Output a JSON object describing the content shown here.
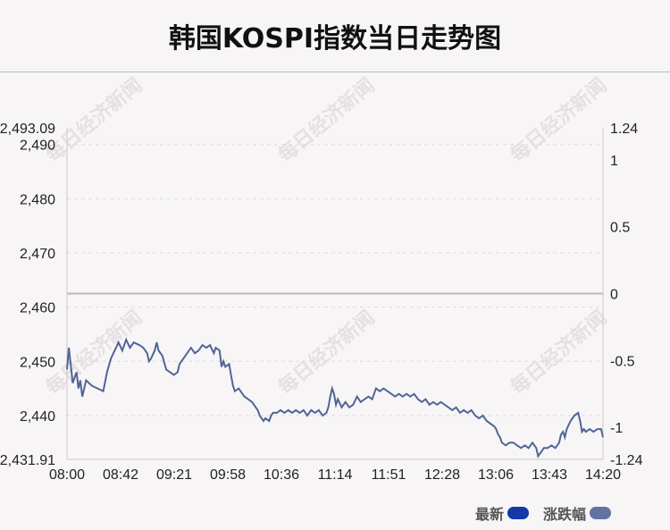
{
  "title": "韩国KOSPI指数当日走势图",
  "watermark": "每日经济新闻",
  "legend": {
    "latest_label": "最新",
    "latest_color": "#1538a8",
    "change_label": "涨跌幅",
    "change_color": "#60749f"
  },
  "colors": {
    "line": "#4f6596",
    "zero_line": "#b8b8b8",
    "grid": "#dcdcdc"
  },
  "chart_data": {
    "type": "line",
    "title": "韩国KOSPI指数当日走势图",
    "x_ticks": [
      "08:00",
      "08:42",
      "09:21",
      "09:58",
      "10:36",
      "11:14",
      "11:51",
      "12:28",
      "13:06",
      "13:43",
      "14:20"
    ],
    "y_left": {
      "min": 2431.91,
      "max": 2493.09,
      "ticks": [
        "2,493.09",
        "2,490",
        "2,480",
        "2,470",
        "2,460",
        "2,450",
        "2,440",
        "2,431.91"
      ]
    },
    "y_right": {
      "min": -1.24,
      "max": 1.24,
      "ticks": [
        "1.24",
        "1",
        "0.5",
        "0",
        "-0.5",
        "-1",
        "-1.24"
      ]
    },
    "zero_reference": 2462.5,
    "series": [
      {
        "values": [
          [
            0,
            2448.5
          ],
          [
            1,
            2452.5
          ],
          [
            3,
            2446
          ],
          [
            5,
            2448
          ],
          [
            6,
            2445
          ],
          [
            7,
            2446.5
          ],
          [
            8,
            2443.5
          ],
          [
            10,
            2446.5
          ],
          [
            13,
            2445.5
          ],
          [
            16,
            2445
          ],
          [
            19,
            2444.5
          ],
          [
            21,
            2448
          ],
          [
            23,
            2450.5
          ],
          [
            25,
            2452
          ],
          [
            27,
            2453.5
          ],
          [
            29,
            2452
          ],
          [
            31,
            2454
          ],
          [
            33,
            2452.5
          ],
          [
            35,
            2453.5
          ],
          [
            38,
            2453
          ],
          [
            40,
            2452.5
          ],
          [
            42,
            2451.5
          ],
          [
            43,
            2450
          ],
          [
            44,
            2450.5
          ],
          [
            46,
            2452
          ],
          [
            47,
            2453.5
          ],
          [
            48,
            2452
          ],
          [
            50,
            2451
          ],
          [
            52,
            2448.5
          ],
          [
            54,
            2448
          ],
          [
            56,
            2447.5
          ],
          [
            58,
            2448
          ],
          [
            59,
            2449.5
          ],
          [
            61,
            2450.5
          ],
          [
            63,
            2451.5
          ],
          [
            65,
            2452.5
          ],
          [
            67,
            2451.5
          ],
          [
            69,
            2452
          ],
          [
            71,
            2453
          ],
          [
            73,
            2452.5
          ],
          [
            75,
            2453
          ],
          [
            77,
            2451.5
          ],
          [
            78,
            2452.5
          ],
          [
            80,
            2452
          ],
          [
            81,
            2449
          ],
          [
            82,
            2450
          ],
          [
            83,
            2449
          ],
          [
            85,
            2449.5
          ],
          [
            86,
            2447.5
          ],
          [
            87,
            2445.5
          ],
          [
            88,
            2444.5
          ],
          [
            90,
            2445
          ],
          [
            92,
            2444
          ],
          [
            93,
            2443.5
          ],
          [
            95,
            2443
          ],
          [
            97,
            2442.5
          ],
          [
            99,
            2441.5
          ],
          [
            100,
            2441
          ],
          [
            101,
            2440
          ],
          [
            102,
            2439.5
          ],
          [
            103,
            2439
          ],
          [
            104,
            2439.5
          ],
          [
            106,
            2439
          ],
          [
            107,
            2440
          ],
          [
            108,
            2440.5
          ],
          [
            110,
            2440.5
          ],
          [
            112,
            2441
          ],
          [
            114,
            2440.5
          ],
          [
            116,
            2441
          ],
          [
            118,
            2440.5
          ],
          [
            120,
            2441
          ],
          [
            122,
            2440.5
          ],
          [
            124,
            2441
          ],
          [
            126,
            2440
          ],
          [
            128,
            2441
          ],
          [
            130,
            2440.5
          ],
          [
            132,
            2441
          ],
          [
            134,
            2440
          ],
          [
            136,
            2440.5
          ],
          [
            137,
            2441.5
          ],
          [
            138,
            2443.5
          ],
          [
            139,
            2445
          ],
          [
            140,
            2444
          ],
          [
            141,
            2442
          ],
          [
            142,
            2443
          ],
          [
            144,
            2441.5
          ],
          [
            146,
            2442.5
          ],
          [
            148,
            2441.5
          ],
          [
            150,
            2442
          ],
          [
            152,
            2443.5
          ],
          [
            154,
            2442.5
          ],
          [
            156,
            2443
          ],
          [
            158,
            2443.5
          ],
          [
            160,
            2443
          ],
          [
            162,
            2445
          ],
          [
            164,
            2444.5
          ],
          [
            166,
            2445
          ],
          [
            168,
            2444.5
          ],
          [
            170,
            2444
          ],
          [
            172,
            2443.5
          ],
          [
            174,
            2444
          ],
          [
            176,
            2443.5
          ],
          [
            178,
            2444
          ],
          [
            180,
            2443.5
          ],
          [
            182,
            2444
          ],
          [
            184,
            2443
          ],
          [
            186,
            2442.5
          ],
          [
            188,
            2443
          ],
          [
            190,
            2442
          ],
          [
            192,
            2442.5
          ],
          [
            194,
            2442
          ],
          [
            196,
            2442.5
          ],
          [
            198,
            2442
          ],
          [
            200,
            2441.5
          ],
          [
            202,
            2441
          ],
          [
            204,
            2441.5
          ],
          [
            206,
            2440.5
          ],
          [
            208,
            2441
          ],
          [
            210,
            2440.5
          ],
          [
            212,
            2441
          ],
          [
            214,
            2440
          ],
          [
            216,
            2439.5
          ],
          [
            218,
            2440
          ],
          [
            220,
            2439
          ],
          [
            222,
            2438.5
          ],
          [
            224,
            2438
          ],
          [
            225,
            2437.5
          ],
          [
            226,
            2436.5
          ],
          [
            227,
            2436
          ],
          [
            228,
            2435
          ],
          [
            230,
            2434.5
          ],
          [
            232,
            2435
          ],
          [
            234,
            2435
          ],
          [
            236,
            2434.5
          ],
          [
            238,
            2434
          ],
          [
            240,
            2434.5
          ],
          [
            242,
            2434
          ],
          [
            244,
            2435
          ],
          [
            246,
            2434
          ],
          [
            247,
            2432.5
          ],
          [
            248,
            2433
          ],
          [
            250,
            2434
          ],
          [
            252,
            2434
          ],
          [
            254,
            2434.5
          ],
          [
            256,
            2434
          ],
          [
            258,
            2435
          ],
          [
            259,
            2436.5
          ],
          [
            260,
            2437
          ],
          [
            261,
            2436
          ],
          [
            262,
            2437.5
          ],
          [
            264,
            2439
          ],
          [
            266,
            2440
          ],
          [
            268,
            2440.5
          ],
          [
            269,
            2439
          ],
          [
            270,
            2437
          ],
          [
            271,
            2437.5
          ],
          [
            272,
            2437
          ],
          [
            274,
            2437.5
          ],
          [
            276,
            2437
          ],
          [
            278,
            2437.5
          ],
          [
            280,
            2437.5
          ],
          [
            281,
            2436
          ]
        ]
      }
    ]
  }
}
